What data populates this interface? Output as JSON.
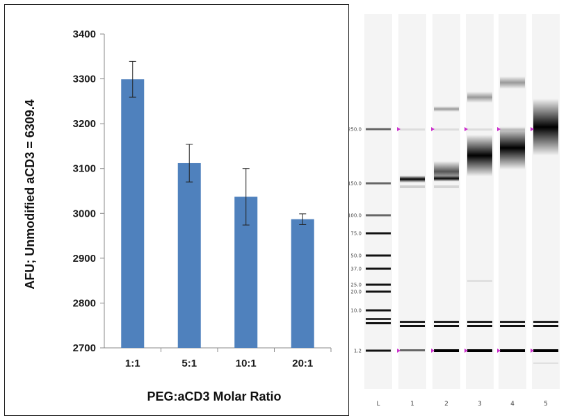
{
  "chart_data": [
    {
      "type": "bar",
      "categories": [
        "1:1",
        "5:1",
        "10:1",
        "20:1"
      ],
      "values": [
        3299,
        3112,
        3037,
        2987
      ],
      "error": [
        40,
        42,
        63,
        12
      ],
      "xlabel": "PEG:aCD3 Molar Ratio",
      "ylabel": "AFU; Unmodified aCD3 = 6309.4",
      "ylim": [
        2700,
        3400
      ],
      "yticks": [
        2700,
        2800,
        2900,
        3000,
        3100,
        3200,
        3300,
        3400
      ],
      "grid": false,
      "bar_color": "#4f81bd"
    },
    {
      "type": "gel",
      "ladder_labels": [
        "250.0",
        "150.0",
        "100.0",
        "75.0",
        "50.0",
        "37.0",
        "25.0",
        "20.0",
        "10.0",
        "1.2"
      ],
      "ladder_values": [
        250,
        150,
        100,
        75,
        50,
        37,
        25,
        20,
        10,
        1.2
      ],
      "lanes": [
        "L",
        "1",
        "2",
        "3",
        "4",
        "5"
      ],
      "marker_color": "#cc33cc"
    }
  ]
}
